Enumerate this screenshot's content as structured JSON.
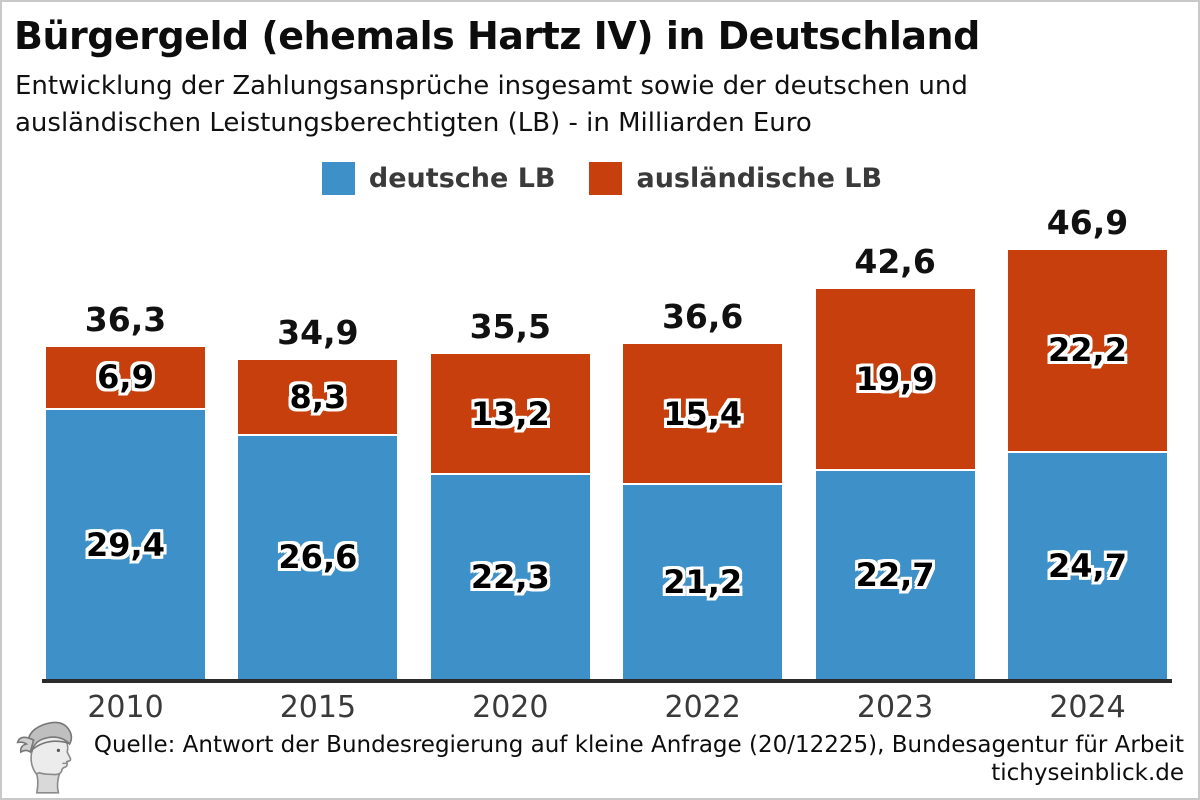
{
  "header": {
    "title": "Bürgergeld (ehemals Hartz IV) in Deutschland",
    "subtitle": "Entwicklung der Zahlungsansprüche insgesamt sowie der deutschen und\nausländischen Leistungsberechtigten (LB) - in Milliarden Euro"
  },
  "legend": {
    "items": [
      {
        "label": "deutsche LB",
        "color": "#3E90C8"
      },
      {
        "label": "ausländische LB",
        "color": "#C63F0C"
      }
    ]
  },
  "chart_data": {
    "type": "bar",
    "stacked": true,
    "title": "Bürgergeld (ehemals Hartz IV) in Deutschland",
    "subtitle": "Entwicklung der Zahlungsansprüche insgesamt sowie der deutschen und ausländischen Leistungsberechtigten (LB) - in Milliarden Euro",
    "unit": "Milliarden Euro",
    "categories": [
      "2010",
      "2015",
      "2020",
      "2022",
      "2023",
      "2024"
    ],
    "series": [
      {
        "name": "deutsche LB",
        "color": "#3E90C8",
        "values": [
          29.4,
          26.6,
          22.3,
          21.2,
          22.7,
          24.7
        ]
      },
      {
        "name": "ausländische LB",
        "color": "#C63F0C",
        "values": [
          6.9,
          8.3,
          13.2,
          15.4,
          19.9,
          22.2
        ]
      }
    ],
    "totals": [
      36.3,
      34.9,
      35.5,
      36.6,
      42.6,
      46.9
    ],
    "ylim": [
      0,
      52
    ],
    "grid": false,
    "legend_position": "top",
    "value_decimal_separator": ",",
    "xlabel": "",
    "ylabel": ""
  },
  "footer": {
    "source": "Quelle: Antwort der Bundesregierung auf kleine Anfrage (20/12225), Bundesagentur für Arbeit",
    "website": "tichyseinblick.de",
    "logo": "hermes-head-logo"
  },
  "colors": {
    "background": "#ffffff",
    "frame_border": "#c9c9c9",
    "axis": "#2b2b2b",
    "title_text": "#0d0d0d",
    "axis_label_text": "#3a3a3a"
  }
}
